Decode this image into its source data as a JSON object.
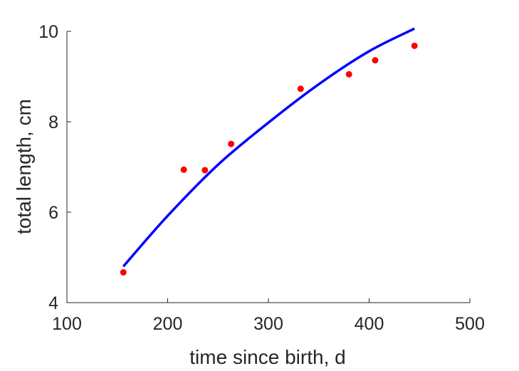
{
  "chart_data": {
    "type": "scatter",
    "title": "",
    "xlabel": "time since birth, d",
    "ylabel": "total length, cm",
    "xlim": [
      100,
      500
    ],
    "ylim": [
      4,
      10
    ],
    "xticks": [
      100,
      200,
      300,
      400,
      500
    ],
    "yticks": [
      4,
      6,
      8,
      10
    ],
    "xtick_labels": [
      "100",
      "200",
      "300",
      "400",
      "500"
    ],
    "ytick_labels": [
      "4",
      "6",
      "8",
      "10"
    ],
    "grid": false,
    "legend": "none",
    "series": [
      {
        "type": "scatter",
        "color": "#ff0000",
        "x": [
          156,
          216,
          237,
          263,
          332,
          380,
          406,
          445
        ],
        "y": [
          4.67,
          6.94,
          6.93,
          7.51,
          8.73,
          9.05,
          9.36,
          9.68
        ]
      },
      {
        "type": "line",
        "color": "#0000ff",
        "x": [
          156,
          200,
          250,
          300,
          350,
          400,
          445
        ],
        "y": [
          4.8,
          5.92,
          7.05,
          7.98,
          8.83,
          9.56,
          10.06
        ]
      }
    ]
  }
}
